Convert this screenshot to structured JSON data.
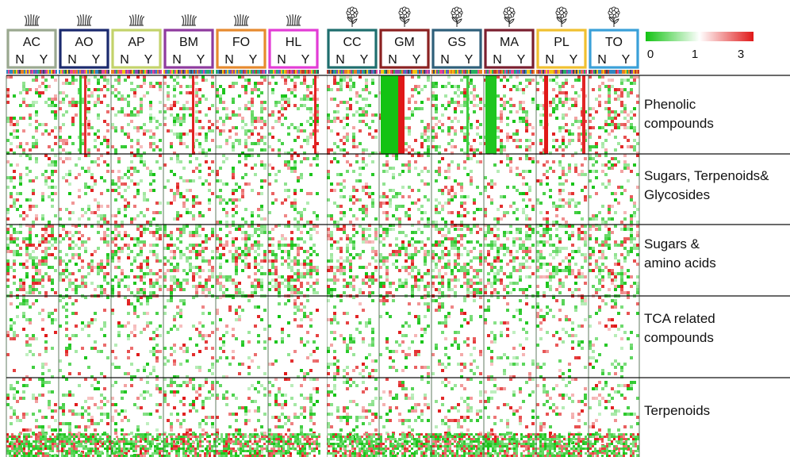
{
  "chart_data": {
    "type": "heatmap",
    "colorbar": {
      "ticks": [
        "0",
        "1",
        "3"
      ],
      "colors": {
        "low": "#13c313",
        "mid": "#ffffff",
        "high": "#e01818"
      }
    },
    "sample_groups": [
      {
        "code": "AC",
        "icon": "grass-icon",
        "border": "#9aa88f"
      },
      {
        "code": "AO",
        "icon": "grass-icon",
        "border": "#1b2a6e"
      },
      {
        "code": "AP",
        "icon": "grass-icon",
        "border": "#c3d36a"
      },
      {
        "code": "BM",
        "icon": "grass-icon",
        "border": "#8e3a9e"
      },
      {
        "code": "FO",
        "icon": "grass-icon",
        "border": "#e68a2e"
      },
      {
        "code": "HL",
        "icon": "grass-icon",
        "border": "#e23cd6"
      },
      {
        "code": "CC",
        "icon": "flower-icon",
        "border": "#1f6e6e"
      },
      {
        "code": "GM",
        "icon": "flower-icon",
        "border": "#8b2121"
      },
      {
        "code": "GS",
        "icon": "flower-icon",
        "border": "#2e5f7a"
      },
      {
        "code": "MA",
        "icon": "flower-icon",
        "border": "#7a1f2e"
      },
      {
        "code": "PL",
        "icon": "flower-icon",
        "border": "#f0c030"
      },
      {
        "code": "TO",
        "icon": "flower-icon",
        "border": "#3aa0d8"
      }
    ],
    "treatment_labels": [
      "N",
      "Y"
    ],
    "compound_classes": [
      {
        "lines": [
          "Phenolic",
          "compounds"
        ]
      },
      {
        "lines": [
          "Sugars, Terpenoids&",
          "Glycosides"
        ]
      },
      {
        "lines": [
          "Sugars &",
          "amino acids"
        ]
      },
      {
        "lines": [
          "TCA related",
          "compounds"
        ]
      },
      {
        "lines": [
          "Terpenoids"
        ]
      }
    ]
  }
}
